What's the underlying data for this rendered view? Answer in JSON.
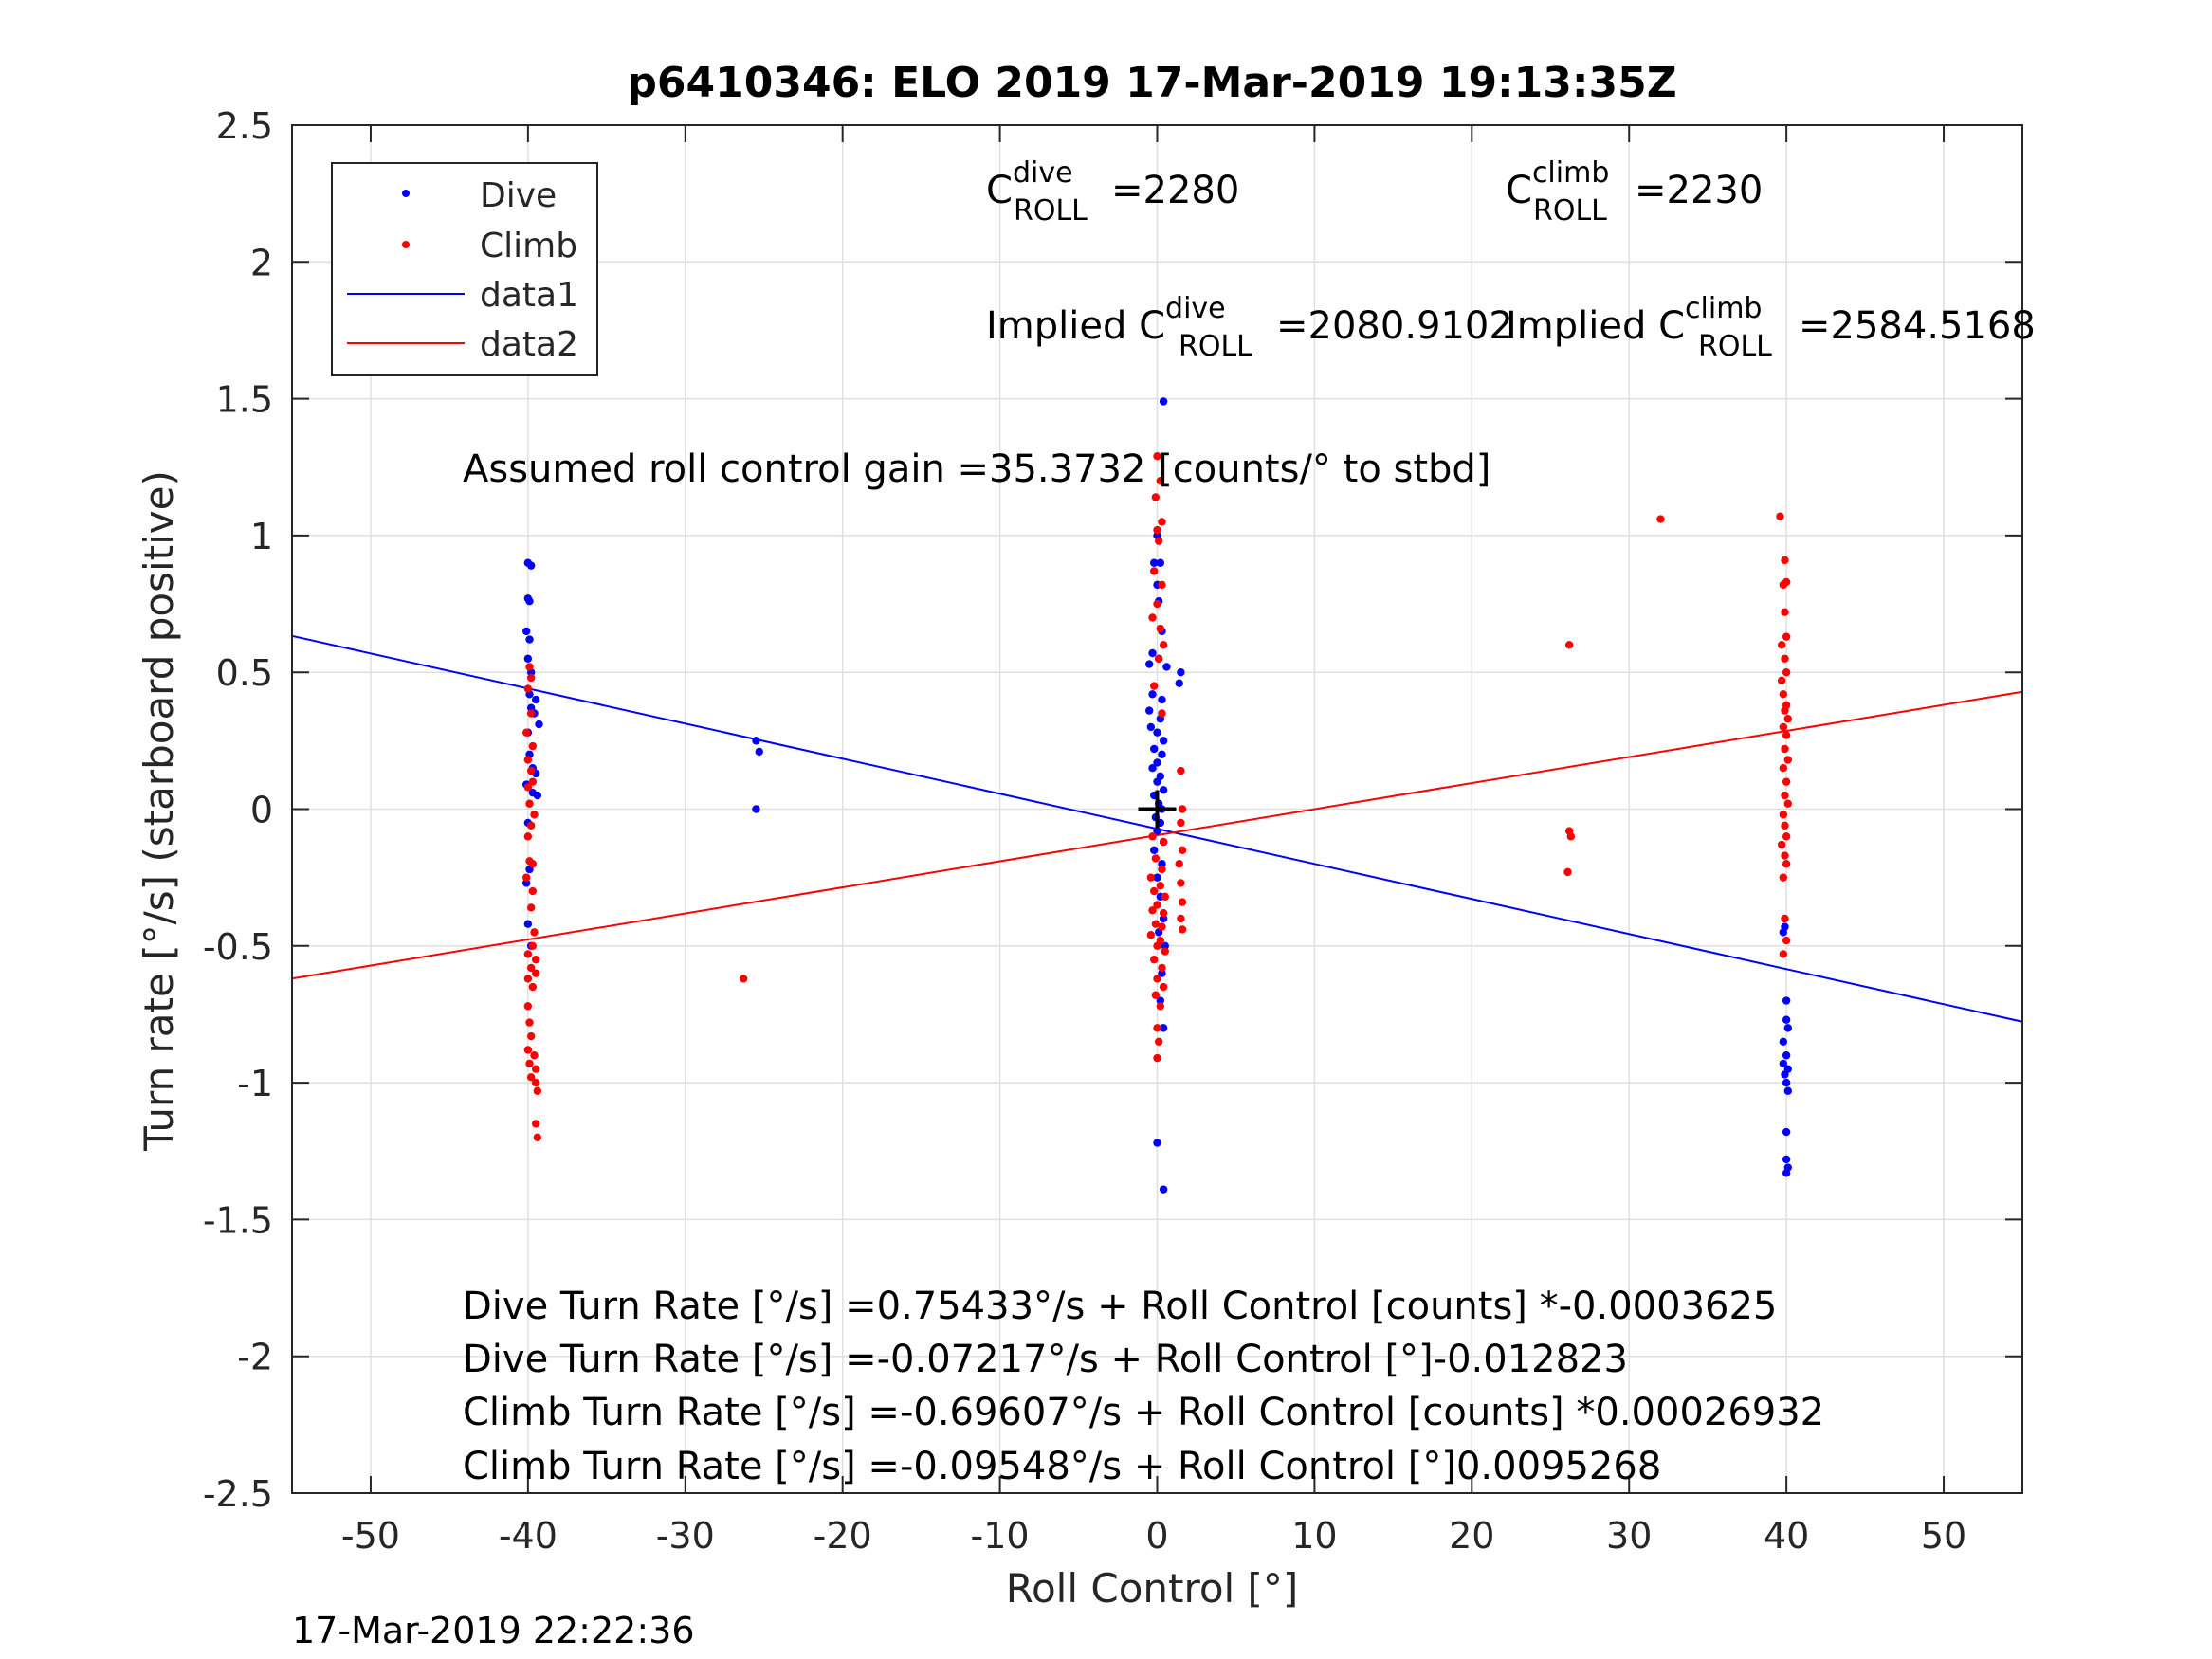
{
  "chart_data": {
    "type": "scatter",
    "title": "p6410346: ELO 2019 17-Mar-2019 19:13:35Z",
    "xlabel": "Roll Control [°]",
    "ylabel": "Turn rate [°/s] (starboard positive)",
    "xlim": [
      -55,
      55
    ],
    "ylim": [
      -2.5,
      2.5
    ],
    "xticks": [
      -50,
      -40,
      -30,
      -20,
      -10,
      0,
      10,
      20,
      30,
      40,
      50
    ],
    "yticks": [
      -2.5,
      -2,
      -1.5,
      -1,
      -0.5,
      0,
      0.5,
      1,
      1.5,
      2,
      2.5
    ],
    "xtick_labels": [
      "-50",
      "-40",
      "-30",
      "-20",
      "-10",
      "0",
      "10",
      "20",
      "30",
      "40",
      "50"
    ],
    "ytick_labels": [
      "-2.5",
      "-2",
      "-1.5",
      "-1",
      "-0.5",
      "0",
      "0.5",
      "1",
      "1.5",
      "2",
      "2.5"
    ],
    "grid": true,
    "legend_position": "top-left",
    "legend": [
      {
        "label": "Dive",
        "color": "#0000ff",
        "kind": "marker"
      },
      {
        "label": "Climb",
        "color": "#ff0000",
        "kind": "marker"
      },
      {
        "label": "data1",
        "color": "#0000ff",
        "kind": "line"
      },
      {
        "label": "data2",
        "color": "#ff0000",
        "kind": "line"
      }
    ],
    "series": [
      {
        "name": "Dive",
        "color": "#0000ff",
        "points": [
          [
            -40.0,
            0.9
          ],
          [
            -39.8,
            0.89
          ],
          [
            -40.0,
            0.77
          ],
          [
            -39.9,
            0.76
          ],
          [
            -40.1,
            0.65
          ],
          [
            -39.9,
            0.62
          ],
          [
            -40.0,
            0.55
          ],
          [
            -39.8,
            0.5
          ],
          [
            -39.9,
            0.42
          ],
          [
            -39.5,
            0.4
          ],
          [
            -39.8,
            0.37
          ],
          [
            -39.6,
            0.35
          ],
          [
            -39.3,
            0.31
          ],
          [
            -40.0,
            0.28
          ],
          [
            -39.9,
            0.2
          ],
          [
            -39.7,
            0.15
          ],
          [
            -39.5,
            0.13
          ],
          [
            -40.1,
            0.09
          ],
          [
            -39.7,
            0.06
          ],
          [
            -39.4,
            0.05
          ],
          [
            -40.0,
            -0.05
          ],
          [
            -39.9,
            -0.22
          ],
          [
            -40.1,
            -0.27
          ],
          [
            -40.0,
            -0.42
          ],
          [
            -39.8,
            -0.5
          ],
          [
            -25.5,
            0.25
          ],
          [
            -25.3,
            0.21
          ],
          [
            -25.5,
            0.0
          ],
          [
            0.4,
            1.49
          ],
          [
            0.0,
            1.0
          ],
          [
            -0.2,
            0.9
          ],
          [
            0.2,
            0.9
          ],
          [
            0.0,
            0.82
          ],
          [
            0.1,
            0.76
          ],
          [
            0.3,
            0.65
          ],
          [
            -0.3,
            0.57
          ],
          [
            -0.5,
            0.53
          ],
          [
            0.1,
            0.55
          ],
          [
            0.6,
            0.52
          ],
          [
            1.5,
            0.5
          ],
          [
            1.4,
            0.46
          ],
          [
            -0.3,
            0.42
          ],
          [
            0.3,
            0.4
          ],
          [
            -0.5,
            0.36
          ],
          [
            0.2,
            0.33
          ],
          [
            -0.4,
            0.3
          ],
          [
            0.0,
            0.28
          ],
          [
            0.4,
            0.25
          ],
          [
            -0.2,
            0.22
          ],
          [
            0.3,
            0.2
          ],
          [
            0.0,
            0.17
          ],
          [
            -0.3,
            0.15
          ],
          [
            0.2,
            0.12
          ],
          [
            0.0,
            0.1
          ],
          [
            0.4,
            0.07
          ],
          [
            -0.2,
            0.05
          ],
          [
            0.1,
            0.02
          ],
          [
            0.3,
            0.0
          ],
          [
            -0.1,
            -0.03
          ],
          [
            0.2,
            -0.05
          ],
          [
            0.0,
            -0.08
          ],
          [
            0.4,
            -0.12
          ],
          [
            -0.2,
            -0.15
          ],
          [
            0.3,
            -0.2
          ],
          [
            0.0,
            -0.25
          ],
          [
            0.2,
            -0.32
          ],
          [
            0.4,
            -0.4
          ],
          [
            0.1,
            -0.45
          ],
          [
            0.5,
            -0.5
          ],
          [
            0.3,
            -0.6
          ],
          [
            0.2,
            -0.7
          ],
          [
            0.4,
            -0.8
          ],
          [
            0.0,
            -1.22
          ],
          [
            0.4,
            -1.39
          ],
          [
            39.9,
            -0.43
          ],
          [
            39.8,
            -0.45
          ],
          [
            40.0,
            -0.7
          ],
          [
            40.0,
            -0.77
          ],
          [
            40.1,
            -0.8
          ],
          [
            39.8,
            -0.85
          ],
          [
            40.0,
            -0.9
          ],
          [
            40.1,
            -0.95
          ],
          [
            39.9,
            -0.97
          ],
          [
            40.0,
            -1.0
          ],
          [
            40.1,
            -1.03
          ],
          [
            39.8,
            -0.93
          ],
          [
            40.0,
            -1.18
          ],
          [
            40.0,
            -1.28
          ],
          [
            40.1,
            -1.31
          ],
          [
            40.0,
            -1.33
          ]
        ]
      },
      {
        "name": "Climb",
        "color": "#ff0000",
        "points": [
          [
            -39.9,
            0.52
          ],
          [
            -39.8,
            0.48
          ],
          [
            -40.0,
            0.44
          ],
          [
            -39.8,
            0.35
          ],
          [
            -40.1,
            0.28
          ],
          [
            -39.7,
            0.23
          ],
          [
            -40.0,
            0.18
          ],
          [
            -39.8,
            0.14
          ],
          [
            -39.7,
            0.1
          ],
          [
            -40.0,
            0.08
          ],
          [
            -39.9,
            0.02
          ],
          [
            -39.6,
            -0.02
          ],
          [
            -39.8,
            -0.06
          ],
          [
            -40.0,
            -0.1
          ],
          [
            -39.7,
            -0.2
          ],
          [
            -39.9,
            -0.19
          ],
          [
            -40.1,
            -0.25
          ],
          [
            -39.7,
            -0.3
          ],
          [
            -39.8,
            -0.36
          ],
          [
            -39.6,
            -0.45
          ],
          [
            -39.7,
            -0.5
          ],
          [
            -40.0,
            -0.53
          ],
          [
            -39.5,
            -0.55
          ],
          [
            -39.8,
            -0.58
          ],
          [
            -40.0,
            -0.62
          ],
          [
            -39.5,
            -0.6
          ],
          [
            -39.7,
            -0.65
          ],
          [
            -40.0,
            -0.72
          ],
          [
            -39.9,
            -0.78
          ],
          [
            -39.8,
            -0.83
          ],
          [
            -40.0,
            -0.88
          ],
          [
            -39.6,
            -0.9
          ],
          [
            -39.9,
            -0.93
          ],
          [
            -39.5,
            -0.95
          ],
          [
            -39.8,
            -0.98
          ],
          [
            -39.5,
            -1.0
          ],
          [
            -39.4,
            -1.03
          ],
          [
            -39.5,
            -1.15
          ],
          [
            -39.4,
            -1.2
          ],
          [
            -26.3,
            -0.62
          ],
          [
            0.0,
            1.29
          ],
          [
            0.2,
            1.2
          ],
          [
            -0.1,
            1.14
          ],
          [
            0.3,
            1.05
          ],
          [
            0.0,
            1.02
          ],
          [
            0.1,
            0.98
          ],
          [
            -0.2,
            0.87
          ],
          [
            0.3,
            0.82
          ],
          [
            0.0,
            0.75
          ],
          [
            -0.3,
            0.7
          ],
          [
            0.2,
            0.66
          ],
          [
            0.4,
            0.6
          ],
          [
            0.1,
            0.55
          ],
          [
            -0.2,
            0.45
          ],
          [
            0.3,
            0.35
          ],
          [
            1.5,
            0.14
          ],
          [
            1.6,
            0.0
          ],
          [
            1.5,
            -0.05
          ],
          [
            -0.3,
            -0.1
          ],
          [
            0.4,
            -0.12
          ],
          [
            1.6,
            -0.15
          ],
          [
            -0.1,
            -0.18
          ],
          [
            1.4,
            -0.2
          ],
          [
            0.3,
            -0.22
          ],
          [
            -0.4,
            -0.25
          ],
          [
            1.5,
            -0.27
          ],
          [
            0.2,
            -0.28
          ],
          [
            -0.2,
            -0.3
          ],
          [
            0.5,
            -0.32
          ],
          [
            1.6,
            -0.34
          ],
          [
            0.0,
            -0.35
          ],
          [
            -0.3,
            -0.37
          ],
          [
            0.4,
            -0.38
          ],
          [
            1.5,
            -0.4
          ],
          [
            -0.1,
            -0.42
          ],
          [
            0.3,
            -0.43
          ],
          [
            1.6,
            -0.44
          ],
          [
            -0.4,
            -0.46
          ],
          [
            0.2,
            -0.48
          ],
          [
            0.0,
            -0.5
          ],
          [
            0.5,
            -0.52
          ],
          [
            -0.2,
            -0.55
          ],
          [
            0.3,
            -0.58
          ],
          [
            0.0,
            -0.62
          ],
          [
            0.4,
            -0.65
          ],
          [
            -0.1,
            -0.68
          ],
          [
            0.2,
            -0.72
          ],
          [
            0.0,
            -0.8
          ],
          [
            0.1,
            -0.85
          ],
          [
            0.0,
            -0.91
          ],
          [
            26.2,
            0.6
          ],
          [
            26.2,
            -0.08
          ],
          [
            26.3,
            -0.1
          ],
          [
            26.1,
            -0.23
          ],
          [
            32.0,
            1.06
          ],
          [
            39.6,
            1.07
          ],
          [
            39.9,
            0.91
          ],
          [
            40.0,
            0.83
          ],
          [
            39.8,
            0.82
          ],
          [
            39.9,
            0.72
          ],
          [
            40.0,
            0.63
          ],
          [
            39.7,
            0.6
          ],
          [
            39.9,
            0.55
          ],
          [
            40.0,
            0.5
          ],
          [
            39.7,
            0.47
          ],
          [
            39.8,
            0.42
          ],
          [
            40.0,
            0.38
          ],
          [
            39.9,
            0.36
          ],
          [
            40.1,
            0.33
          ],
          [
            39.8,
            0.3
          ],
          [
            40.0,
            0.27
          ],
          [
            39.9,
            0.22
          ],
          [
            40.1,
            0.18
          ],
          [
            39.8,
            0.15
          ],
          [
            40.0,
            0.1
          ],
          [
            39.9,
            0.05
          ],
          [
            40.1,
            0.02
          ],
          [
            39.8,
            -0.02
          ],
          [
            39.9,
            -0.06
          ],
          [
            40.0,
            -0.1
          ],
          [
            39.7,
            -0.13
          ],
          [
            39.9,
            -0.17
          ],
          [
            40.0,
            -0.2
          ],
          [
            39.8,
            -0.25
          ],
          [
            39.9,
            -0.4
          ],
          [
            40.0,
            -0.48
          ],
          [
            39.8,
            -0.53
          ]
        ]
      },
      {
        "name": "data1",
        "color": "#0000ff",
        "line": [
          [
            -55,
            0.633
          ],
          [
            55,
            -0.777
          ]
        ]
      },
      {
        "name": "data2",
        "color": "#ff0000",
        "line": [
          [
            -55,
            -0.6195
          ],
          [
            55,
            0.4287
          ]
        ]
      }
    ],
    "marker": [
      0,
      0
    ],
    "annotations": {
      "c_dive": {
        "base": "C",
        "sub": "ROLL",
        "sup": "dive",
        "value": "=2280"
      },
      "c_climb": {
        "base": "C",
        "sub": "ROLL",
        "sup": "climb",
        "value": "=2230"
      },
      "implied_dive": {
        "prefix": "Implied C",
        "sub": "ROLL",
        "sup": "dive",
        "value": "=2080.9102"
      },
      "implied_climb": {
        "prefix": "Implied C",
        "sub": "ROLL",
        "sup": "climb",
        "value": "=2584.5168"
      },
      "gain": "Assumed roll control gain =35.3732 [counts/° to stbd]",
      "eq1": "Dive Turn Rate [°/s] =0.75433°/s + Roll Control [counts] *-0.0003625",
      "eq2": "Dive Turn Rate [°/s] =-0.07217°/s + Roll Control [°]-0.012823",
      "eq3": "Climb Turn Rate [°/s] =-0.69607°/s + Roll Control [counts] *0.00026932",
      "eq4": "Climb Turn Rate [°/s] =-0.09548°/s + Roll Control [°]0.0095268"
    },
    "timestamp": "17-Mar-2019 22:22:36"
  }
}
